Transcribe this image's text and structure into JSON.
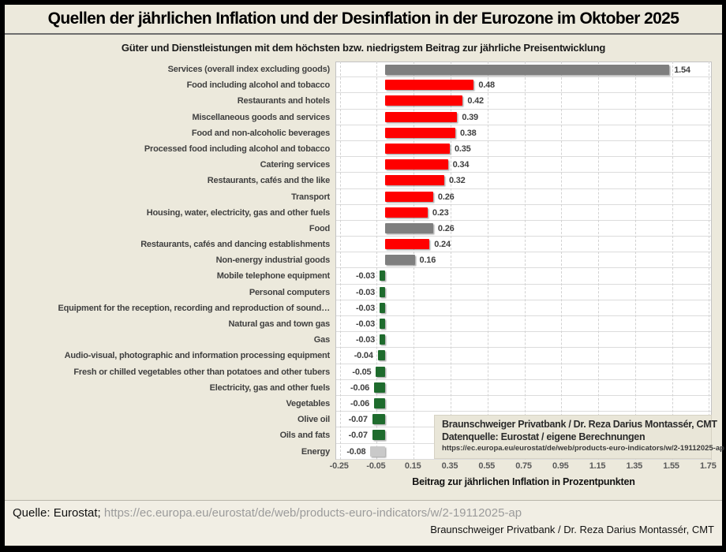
{
  "title": "Quellen der jährlichen Inflation und der Desinflation in der Eurozone im Oktober 2025",
  "subtitle": "Güter und Dienstleistungen mit dem höchsten bzw. niedrigstem Beitrag zur jährliche Preisentwicklung",
  "chart_data": {
    "type": "bar",
    "orientation": "horizontal",
    "title": "Güter und Dienstleistungen mit dem höchsten bzw. niedrigstem Beitrag zur jährliche Preisentwicklung",
    "xlabel": "Beitrag zur jährlichen Inflation in Prozentpunkten",
    "xlim": [
      -0.27,
      1.77
    ],
    "xticks": [
      -0.25,
      -0.05,
      0.15,
      0.35,
      0.55,
      0.75,
      0.95,
      1.15,
      1.35,
      1.55,
      1.75
    ],
    "grid": "vertical-dashed",
    "categories": [
      "Services (overall index excluding goods)",
      "Food including alcohol and tobacco",
      "Restaurants and hotels",
      "Miscellaneous goods and services",
      "Food and non-alcoholic beverages",
      "Processed food including alcohol and tobacco",
      "Catering services",
      "Restaurants, cafés and the like",
      "Transport",
      "Housing, water, electricity, gas and other fuels",
      "Food",
      "Restaurants, cafés and dancing establishments",
      "Non-energy industrial goods",
      "Mobile telephone equipment",
      "Personal computers",
      "Equipment for the reception, recording and reproduction of sound…",
      "Natural gas and town gas",
      "Gas",
      "Audio-visual, photographic and information processing equipment",
      "Fresh or chilled vegetables other than potatoes and other tubers",
      "Electricity, gas and other fuels",
      "Vegetables",
      "Olive oil",
      "Oils and fats",
      "Energy"
    ],
    "values": [
      1.54,
      0.48,
      0.42,
      0.39,
      0.38,
      0.35,
      0.34,
      0.32,
      0.26,
      0.23,
      0.26,
      0.24,
      0.16,
      -0.03,
      -0.03,
      -0.03,
      -0.03,
      -0.03,
      -0.04,
      -0.05,
      -0.06,
      -0.06,
      -0.07,
      -0.07,
      -0.08
    ],
    "bar_colors": [
      "#7F7F7F",
      "#FF0000",
      "#FF0000",
      "#FF0000",
      "#FF0000",
      "#FF0000",
      "#FF0000",
      "#FF0000",
      "#FF0000",
      "#FF0000",
      "#7F7F7F",
      "#FF0000",
      "#7F7F7F",
      "#1E6B2D",
      "#1E6B2D",
      "#1E6B2D",
      "#1E6B2D",
      "#1E6B2D",
      "#1E6B2D",
      "#1E6B2D",
      "#1E6B2D",
      "#1E6B2D",
      "#1E6B2D",
      "#1E6B2D",
      "#C9C9C9"
    ]
  },
  "annotation": {
    "line1": "Braunschweiger Privatbank / Dr. Reza Darius Montassér, CMT",
    "line2": "Datenquelle: Eurostat / eigene Berechnungen",
    "line3": "https://ec.europa.eu/eurostat/de/web/products-euro-indicators/w/2-19112025-ap"
  },
  "footer": {
    "source_label": "Quelle: Eurostat;",
    "source_url": "https://ec.europa.eu/eurostat/de/web/products-euro-indicators/w/2-19112025-ap",
    "credit": "Braunschweiger Privatbank / Dr. Reza Darius Montassér, CMT"
  },
  "colors": {
    "background": "#ECE9DC",
    "frame": "#000000",
    "inflation_bar": "#FF0000",
    "aggregate_bar": "#7F7F7F",
    "disinflation_bar": "#1E6B2D",
    "energy_bar": "#C9C9C9",
    "plot_background": "#FFFFFF"
  }
}
